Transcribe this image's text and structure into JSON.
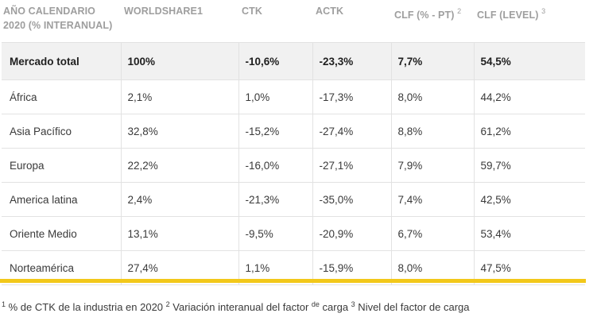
{
  "table": {
    "headers": {
      "c0_line1": "AÑO CALENDARIO",
      "c0_line2": "2020 (% INTERANUAL)",
      "c1": "WORLDSHARE1",
      "c2": "CTK",
      "c3": "ACTK",
      "c4": "CLF (% - PT)",
      "c4_sup": "2",
      "c5": "CLF (LEVEL)",
      "c5_sup": "3"
    },
    "rows": [
      {
        "region": "Mercado total",
        "worldshare": "100%",
        "ctk": "-10,6%",
        "actk": "-23,3%",
        "clf_pt": "7,7%",
        "clf_level": "54,5%"
      },
      {
        "region": "África",
        "worldshare": "2,1%",
        "ctk": "1,0%",
        "actk": "-17,3%",
        "clf_pt": "8,0%",
        "clf_level": "44,2%"
      },
      {
        "region": "Asia Pacífico",
        "worldshare": "32,8%",
        "ctk": "-15,2%",
        "actk": "-27,4%",
        "clf_pt": "8,8%",
        "clf_level": "61,2%"
      },
      {
        "region": "Europa",
        "worldshare": "22,2%",
        "ctk": "-16,0%",
        "actk": "-27,1%",
        "clf_pt": "7,9%",
        "clf_level": "59,7%"
      },
      {
        "region": "America latina",
        "worldshare": "2,4%",
        "ctk": "-21,3%",
        "actk": "-35,0%",
        "clf_pt": "7,4%",
        "clf_level": "42,5%"
      },
      {
        "region": "Oriente Medio",
        "worldshare": "13,1%",
        "ctk": "-9,5%",
        "actk": "-20,9%",
        "clf_pt": "6,7%",
        "clf_level": "53,4%"
      },
      {
        "region": "Norteamérica",
        "worldshare": "27,4%",
        "ctk": "1,1%",
        "actk": "-15,9%",
        "clf_pt": "8,0%",
        "clf_level": "47,5%"
      }
    ]
  },
  "footnote": {
    "sup1": "1",
    "text1": " % de CTK de la industria en 2020  ",
    "sup2": "2",
    "text2": " Variación interanual del factor ",
    "sup_de": "de",
    "text3": " carga ",
    "sup3": "3",
    "text4": " Nivel del factor de carga"
  },
  "colors": {
    "accent_bar": "#f2c81a",
    "header_text": "#9e9e9e",
    "total_row_bg": "#f1f1f1"
  }
}
